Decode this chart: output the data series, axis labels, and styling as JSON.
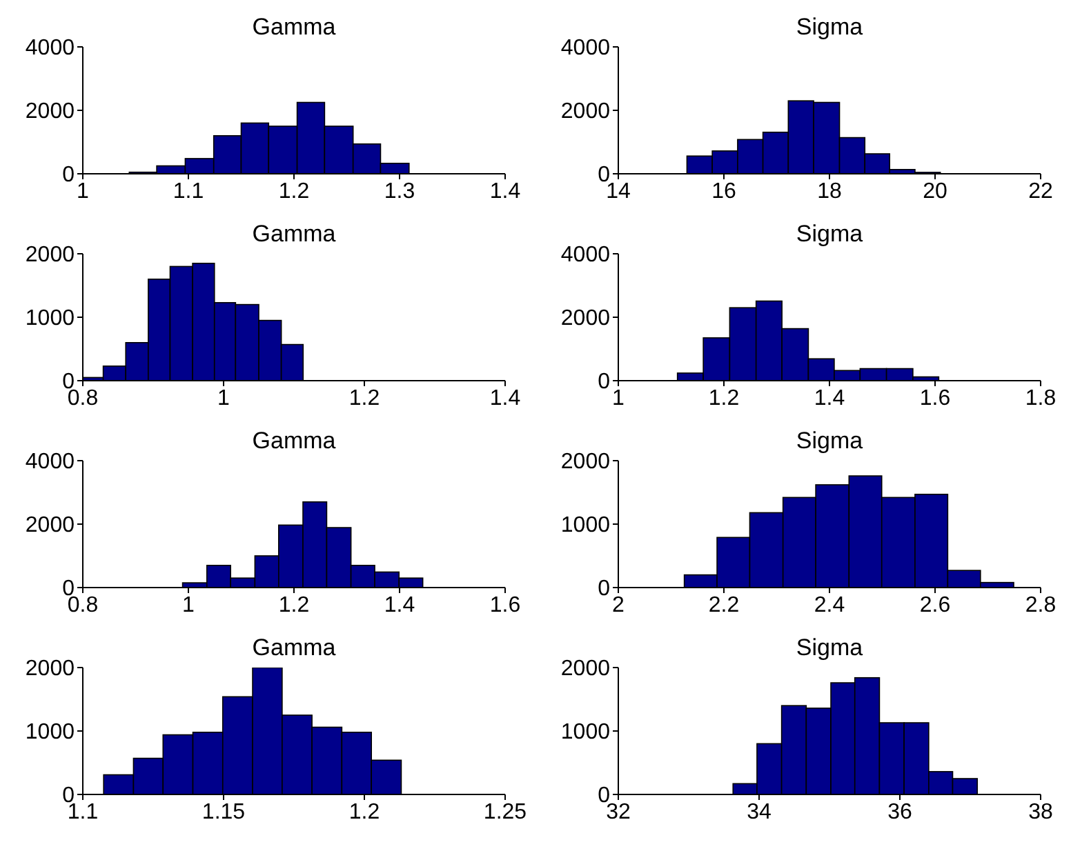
{
  "chart_data": [
    {
      "type": "histogram",
      "title": "Gamma",
      "color": "#00008b",
      "bins": [
        1.044,
        1.07,
        1.097,
        1.124,
        1.15,
        1.176,
        1.203,
        1.229,
        1.256,
        1.282,
        1.309
      ],
      "values": [
        50,
        250,
        480,
        1200,
        1600,
        1500,
        2250,
        1500,
        940,
        330
      ],
      "xlim": [
        1,
        1.4
      ],
      "xticks": [
        1,
        1.1,
        1.2,
        1.3,
        1.4
      ],
      "ylim": [
        0,
        4000
      ],
      "yticks": [
        0,
        2000,
        4000
      ]
    },
    {
      "type": "histogram",
      "title": "Sigma",
      "color": "#00008b",
      "bins": [
        15.3,
        15.78,
        16.26,
        16.74,
        17.22,
        17.7,
        18.19,
        18.67,
        19.14,
        19.62,
        20.1
      ],
      "values": [
        560,
        720,
        1080,
        1310,
        2300,
        2250,
        1140,
        630,
        135,
        45
      ],
      "xlim": [
        14,
        22
      ],
      "xticks": [
        14,
        16,
        18,
        20,
        22
      ],
      "ylim": [
        0,
        4000
      ],
      "yticks": [
        0,
        2000,
        4000
      ]
    },
    {
      "type": "histogram",
      "title": "Gamma",
      "color": "#00008b",
      "bins": [
        0.8,
        0.829,
        0.861,
        0.893,
        0.924,
        0.956,
        0.987,
        1.017,
        1.05,
        1.082,
        1.113
      ],
      "values": [
        50,
        230,
        600,
        1600,
        1800,
        1850,
        1230,
        1200,
        950,
        570
      ],
      "xlim": [
        0.8,
        1.4
      ],
      "xticks": [
        0.8,
        1,
        1.2,
        1.4
      ],
      "ylim": [
        0,
        2000
      ],
      "yticks": [
        0,
        1000,
        2000
      ]
    },
    {
      "type": "histogram",
      "title": "Sigma",
      "color": "#00008b",
      "bins": [
        1.112,
        1.161,
        1.211,
        1.261,
        1.31,
        1.36,
        1.409,
        1.458,
        1.508,
        1.558,
        1.607
      ],
      "values": [
        240,
        1350,
        2300,
        2510,
        1640,
        690,
        320,
        380,
        380,
        120
      ],
      "xlim": [
        1,
        1.8
      ],
      "xticks": [
        1,
        1.2,
        1.4,
        1.6,
        1.8
      ],
      "ylim": [
        0,
        4000
      ],
      "yticks": [
        0,
        2000,
        4000
      ]
    },
    {
      "type": "histogram",
      "title": "Gamma",
      "color": "#00008b",
      "bins": [
        0.989,
        1.035,
        1.08,
        1.126,
        1.171,
        1.217,
        1.262,
        1.308,
        1.353,
        1.399,
        1.444
      ],
      "values": [
        150,
        700,
        300,
        1000,
        1970,
        2700,
        1890,
        700,
        490,
        300
      ],
      "xlim": [
        0.8,
        1.6
      ],
      "xticks": [
        0.8,
        1,
        1.2,
        1.4,
        1.6
      ],
      "ylim": [
        0,
        4000
      ],
      "yticks": [
        0,
        2000,
        4000
      ]
    },
    {
      "type": "histogram",
      "title": "Sigma",
      "color": "#00008b",
      "bins": [
        2.125,
        2.187,
        2.249,
        2.312,
        2.374,
        2.437,
        2.499,
        2.562,
        2.624,
        2.686,
        2.749
      ],
      "values": [
        200,
        790,
        1180,
        1420,
        1620,
        1760,
        1420,
        1470,
        270,
        80
      ],
      "xlim": [
        2,
        2.8
      ],
      "xticks": [
        2,
        2.2,
        2.4,
        2.6,
        2.8
      ],
      "ylim": [
        0,
        2000
      ],
      "yticks": [
        0,
        1000,
        2000
      ]
    },
    {
      "type": "histogram",
      "title": "Gamma",
      "color": "#00008b",
      "bins": [
        1.1074,
        1.118,
        1.1285,
        1.1391,
        1.1497,
        1.1603,
        1.1708,
        1.1814,
        1.192,
        1.2025,
        1.2131
      ],
      "values": [
        310,
        570,
        940,
        980,
        1540,
        2000,
        1250,
        1060,
        980,
        540
      ],
      "xlim": [
        1.1,
        1.25
      ],
      "xticks": [
        1.1,
        1.15,
        1.2,
        1.25
      ],
      "ylim": [
        0,
        2000
      ],
      "yticks": [
        0,
        1000,
        2000
      ]
    },
    {
      "type": "histogram",
      "title": "Sigma",
      "color": "#00008b",
      "bins": [
        33.63,
        33.97,
        34.32,
        34.67,
        35.02,
        35.36,
        35.71,
        36.06,
        36.41,
        36.75,
        37.1
      ],
      "values": [
        170,
        800,
        1400,
        1360,
        1760,
        1840,
        1130,
        1130,
        360,
        250
      ],
      "xlim": [
        32,
        38
      ],
      "xticks": [
        32,
        34,
        36,
        38
      ],
      "ylim": [
        0,
        2000
      ],
      "yticks": [
        0,
        1000,
        2000
      ]
    }
  ]
}
